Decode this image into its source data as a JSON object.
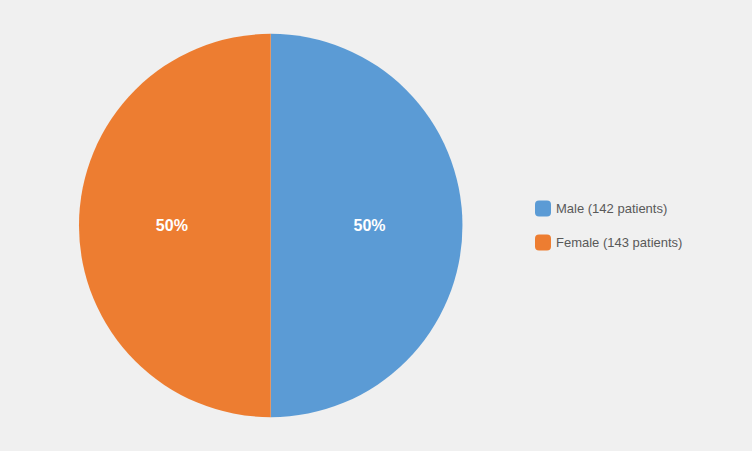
{
  "chart_data": {
    "type": "pie",
    "categories": [
      "Male (142 patients)",
      "Female (143 patients)"
    ],
    "values": [
      50,
      50
    ],
    "value_labels": [
      "50%",
      "50%"
    ],
    "colors": [
      "#5B9BD5",
      "#ED7D31"
    ],
    "data_labels": true,
    "legend": "right"
  }
}
